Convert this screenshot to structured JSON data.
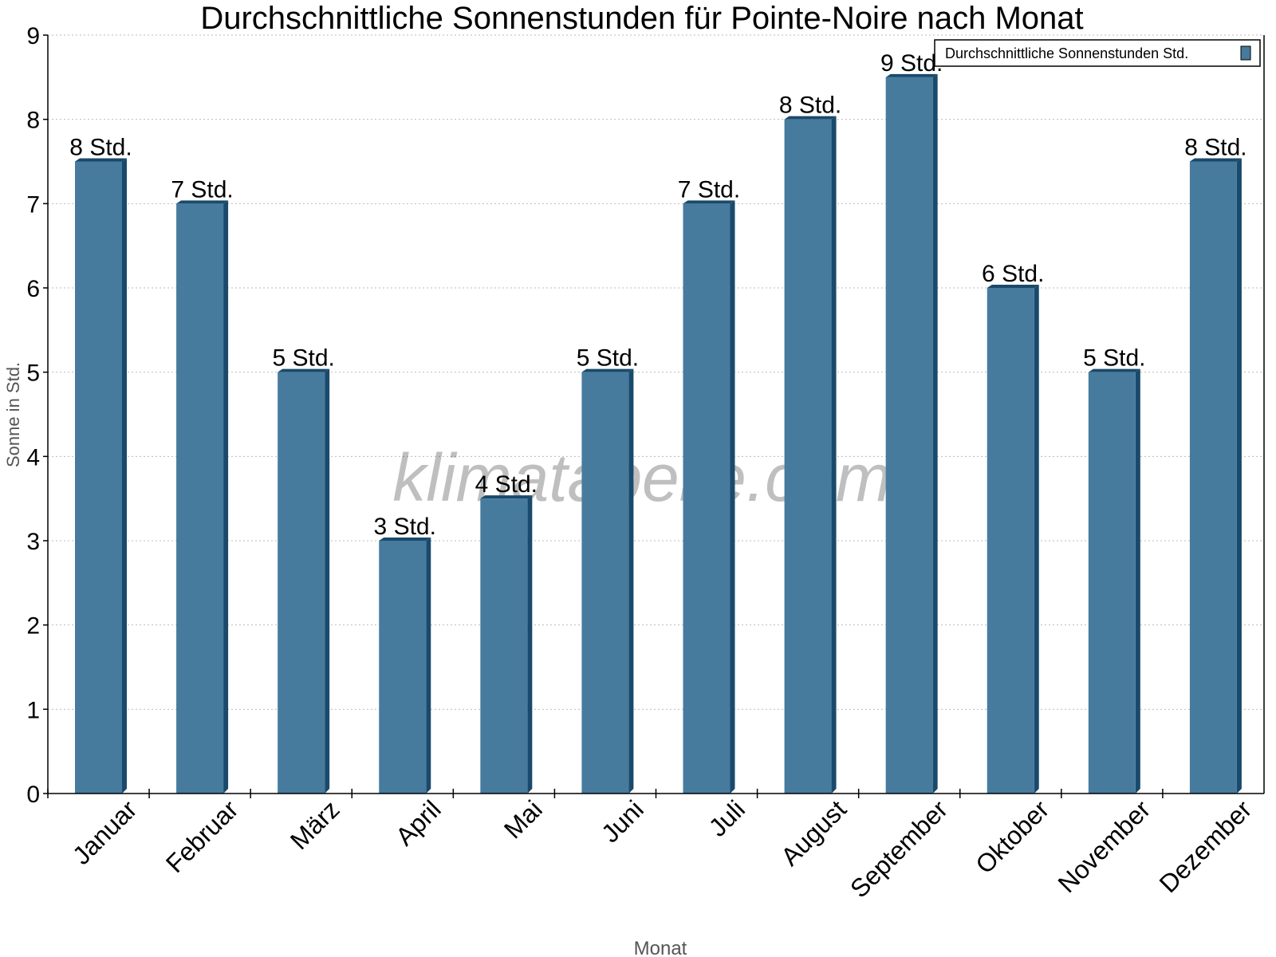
{
  "chart_data": {
    "type": "bar",
    "title": "Durchschnittliche Sonnenstunden für Pointe-Noire nach Monat",
    "xlabel": "Monat",
    "ylabel": "Sonne in Std.",
    "ylim": [
      0,
      9
    ],
    "yticks": [
      "0",
      "1",
      "2",
      "3",
      "4",
      "5",
      "6",
      "7",
      "8",
      "9"
    ],
    "grid": true,
    "legend_position": "top-right",
    "categories": [
      "Januar",
      "Februar",
      "März",
      "April",
      "Mai",
      "Juni",
      "Juli",
      "August",
      "September",
      "Oktober",
      "November",
      "Dezember"
    ],
    "series": [
      {
        "name": "Durchschnittliche Sonnenstunden Std.",
        "color": "#467b9e",
        "side_color": "#1a4a6b",
        "values": [
          7.5,
          7,
          5,
          3,
          3.5,
          5,
          7,
          8,
          8.5,
          6,
          5,
          7.5
        ],
        "labels": [
          "8 Std.",
          "7 Std.",
          "5 Std.",
          "3 Std.",
          "4 Std.",
          "5 Std.",
          "7 Std.",
          "8 Std.",
          "9 Std.",
          "6 Std.",
          "5 Std.",
          "8 Std."
        ]
      }
    ]
  },
  "watermark": "klimatabelle.com"
}
